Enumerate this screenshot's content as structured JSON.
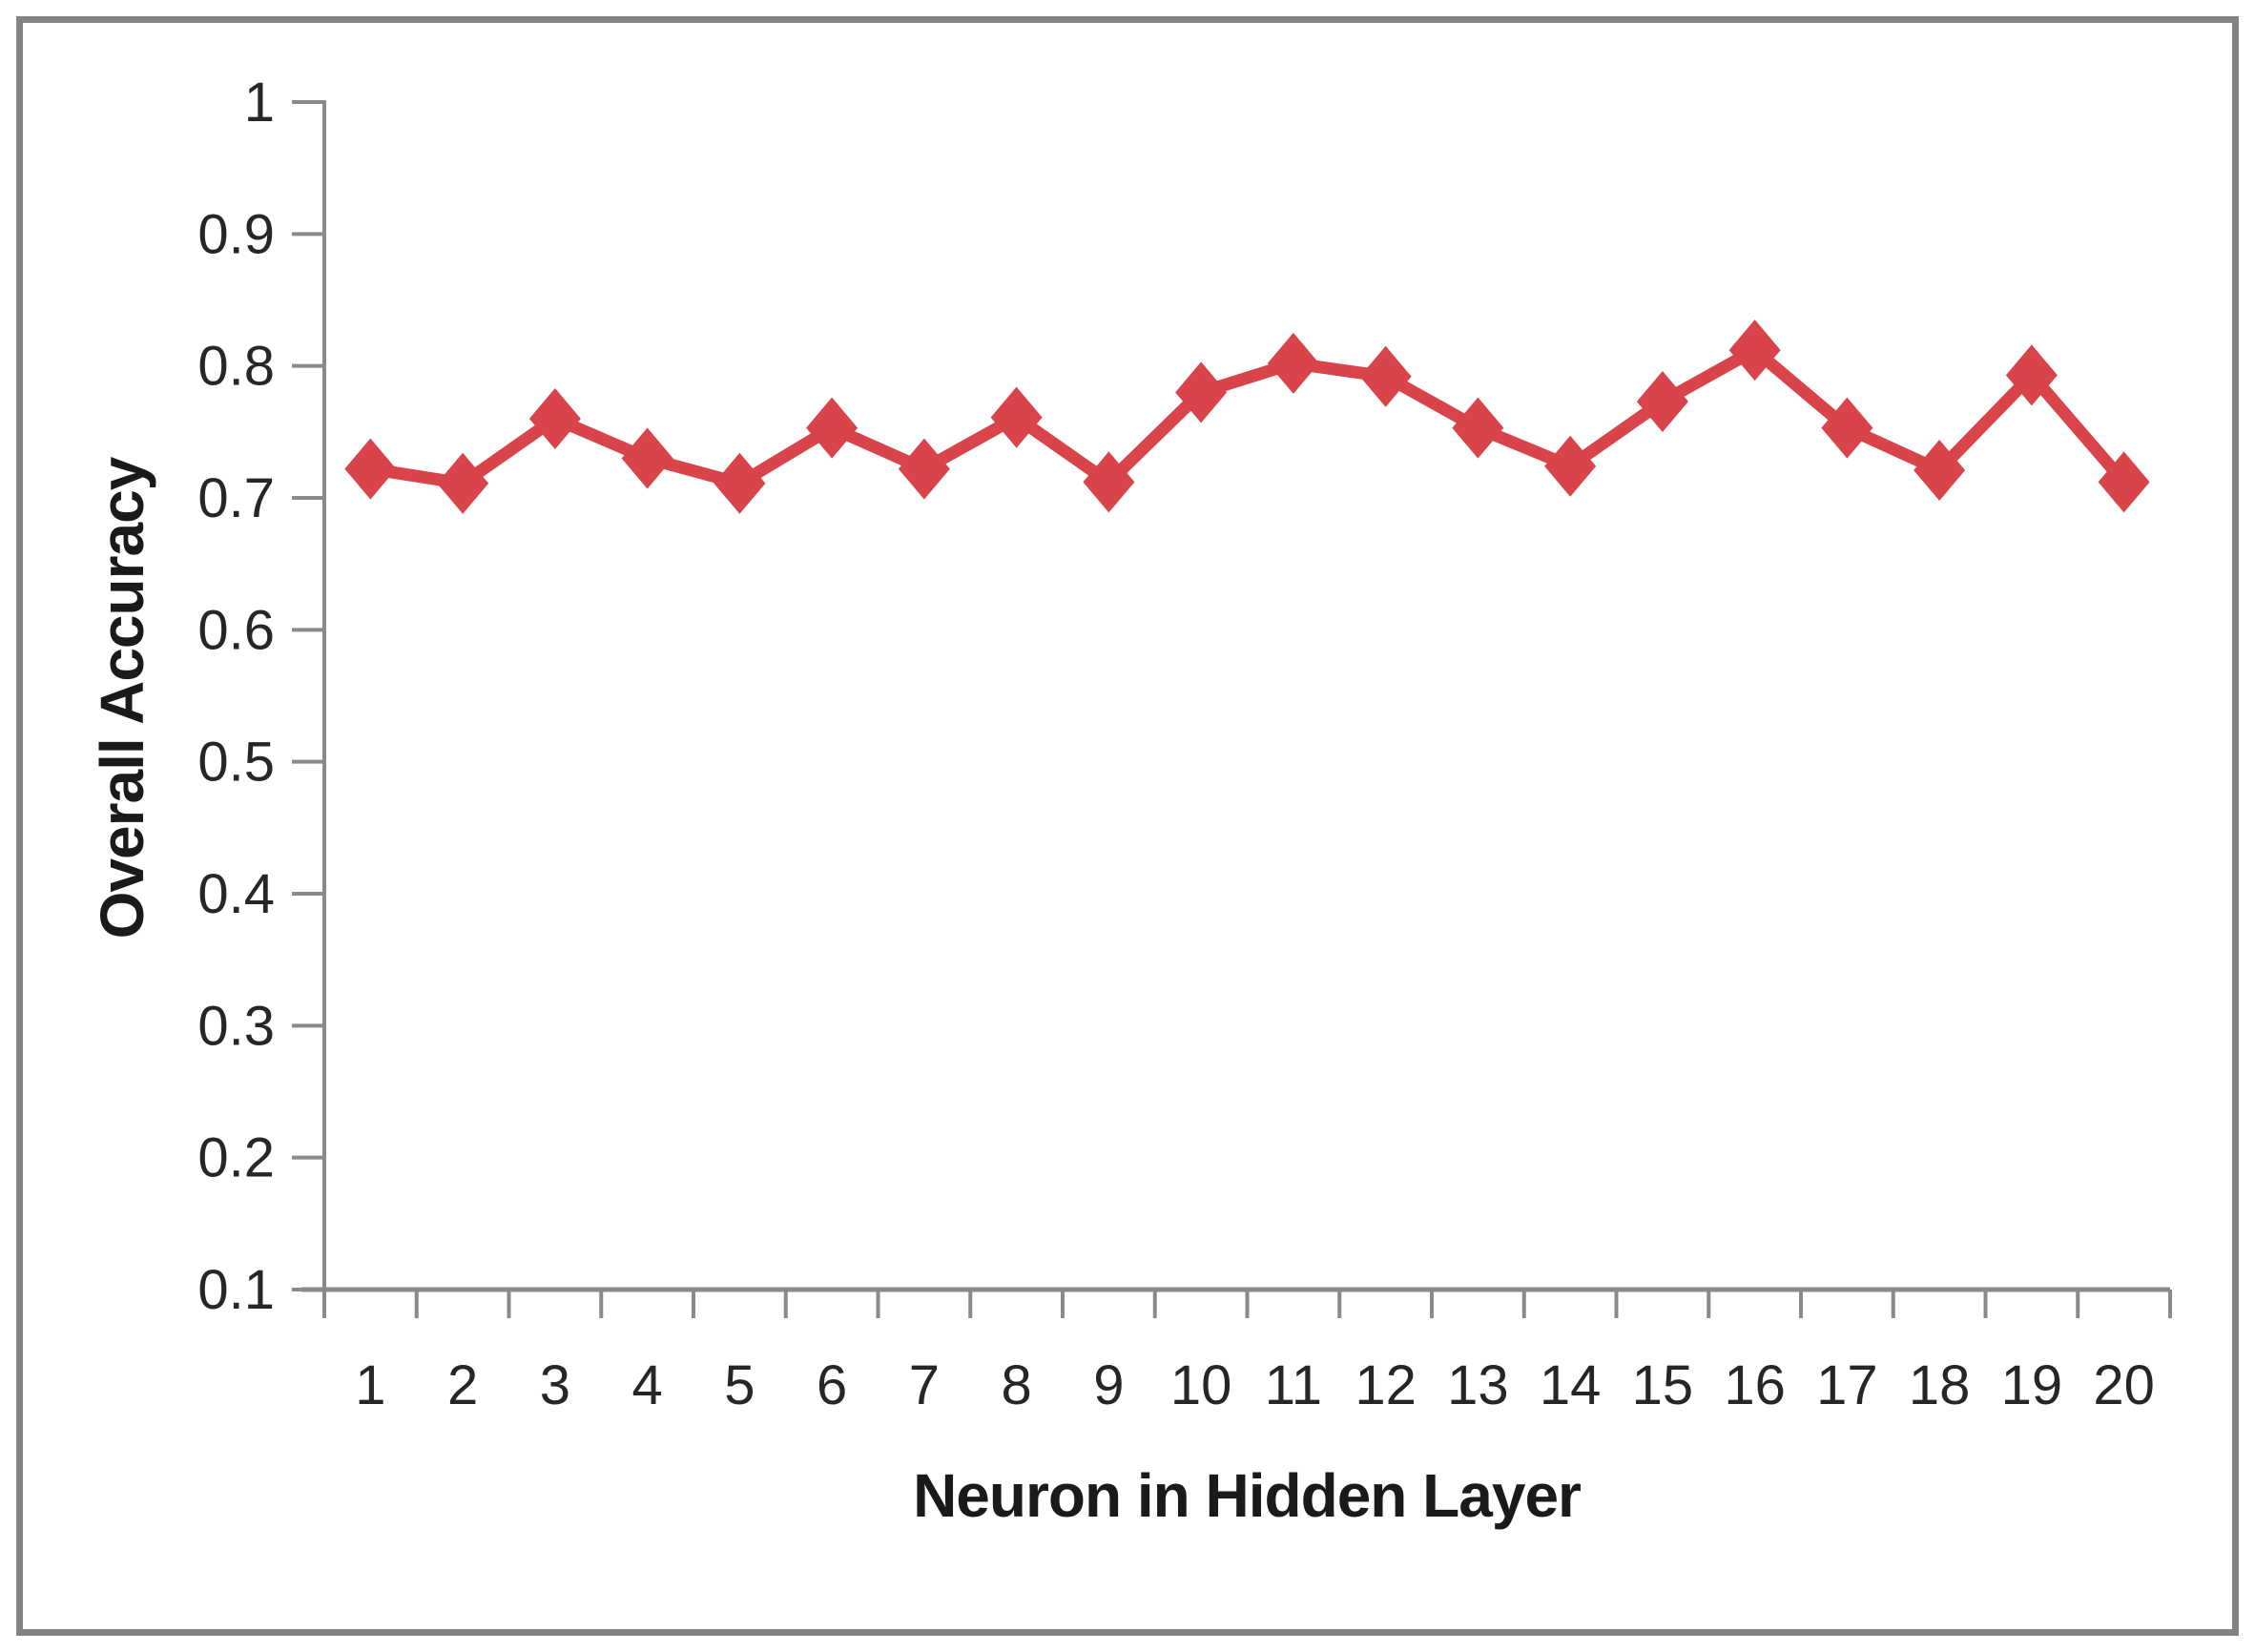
{
  "chart_data": {
    "type": "line",
    "series_name": "Overall Accuracy",
    "xlabel": "Neuron in Hidden Layer",
    "ylabel": "Overall Accuracy",
    "x": [
      "1",
      "2",
      "3",
      "4",
      "5",
      "6",
      "7",
      "8",
      "9",
      "10",
      "11",
      "12",
      "13",
      "14",
      "15",
      "16",
      "17",
      "18",
      "19",
      "20"
    ],
    "values": [
      0.722,
      0.711,
      0.76,
      0.73,
      0.711,
      0.753,
      0.722,
      0.761,
      0.712,
      0.78,
      0.802,
      0.792,
      0.753,
      0.724,
      0.773,
      0.812,
      0.753,
      0.721,
      0.793,
      0.712
    ],
    "y_tick_labels": [
      "0.1",
      "0.2",
      "0.3",
      "0.4",
      "0.5",
      "0.6",
      "0.7",
      "0.8",
      "0.9",
      "1"
    ],
    "y_tick_values": [
      0.1,
      0.2,
      0.3,
      0.4,
      0.5,
      0.6,
      0.7,
      0.8,
      0.9,
      1.0
    ],
    "ylim": [
      0.1,
      1.0
    ],
    "grid": false,
    "legend": "none",
    "marker": "diamond",
    "line_color": "#d8444a",
    "axis_color": "#8a8a8a",
    "text_color": "#262626",
    "frame_color": "#828282"
  }
}
